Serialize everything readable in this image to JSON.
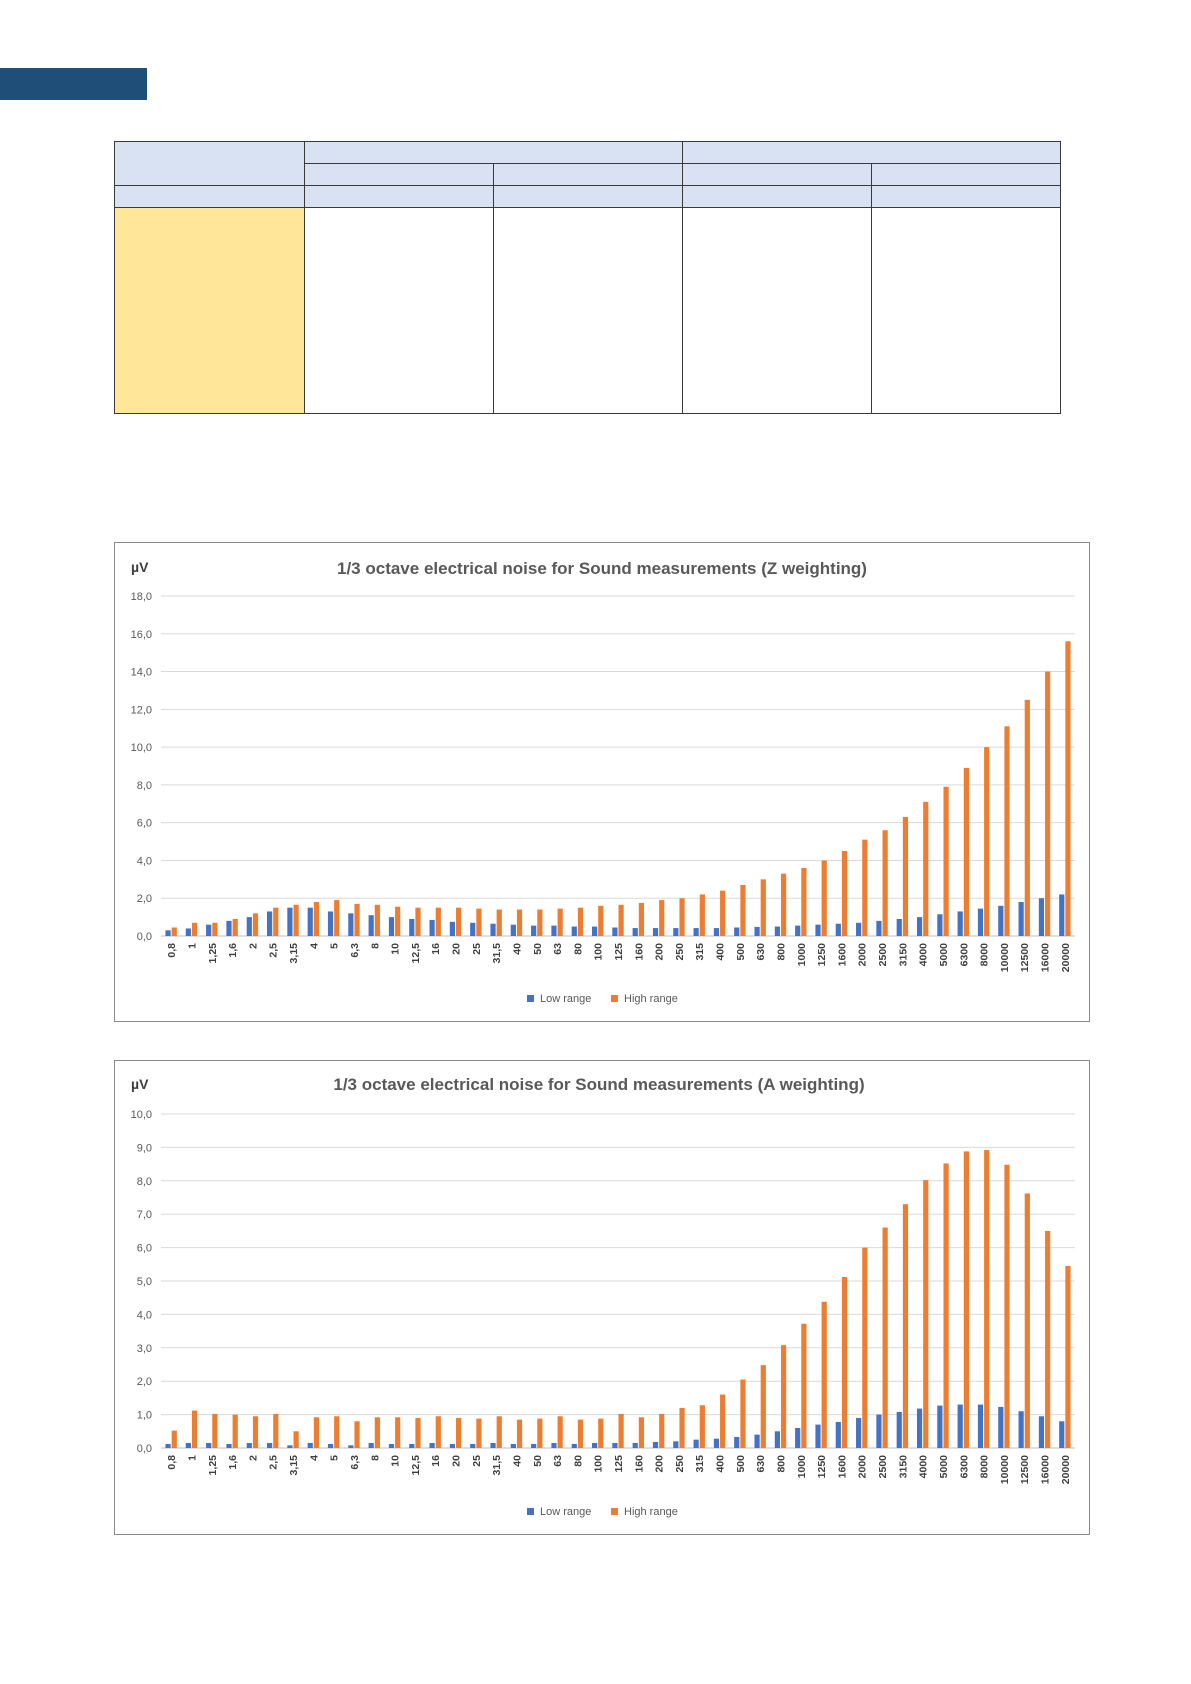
{
  "colors": {
    "low": "#4472c4",
    "high": "#ed7d31",
    "header": "#1f4e79",
    "table_header": "#d9e2f3",
    "table_label": "#ffe699"
  },
  "chart_data": [
    {
      "type": "bar",
      "title": "1/3 octave electrical noise for Sound measurements (Z weighting)",
      "ylabel": "µV",
      "ylim": [
        0,
        18
      ],
      "yticks": [
        "0,0",
        "2,0",
        "4,0",
        "6,0",
        "8,0",
        "10,0",
        "12,0",
        "14,0",
        "16,0",
        "18,0"
      ],
      "grid": true,
      "legend": "bottom",
      "categories": [
        "0,8",
        "1",
        "1,25",
        "1,6",
        "2",
        "2,5",
        "3,15",
        "4",
        "5",
        "6,3",
        "8",
        "10",
        "12,5",
        "16",
        "20",
        "25",
        "31,5",
        "40",
        "50",
        "63",
        "80",
        "100",
        "125",
        "160",
        "200",
        "250",
        "315",
        "400",
        "500",
        "630",
        "800",
        "1000",
        "1250",
        "1600",
        "2000",
        "2500",
        "3150",
        "4000",
        "5000",
        "6300",
        "8000",
        "10000",
        "12500",
        "16000",
        "20000"
      ],
      "series": [
        {
          "name": "Low range",
          "values": [
            0.3,
            0.4,
            0.6,
            0.8,
            1.0,
            1.3,
            1.5,
            1.5,
            1.3,
            1.2,
            1.1,
            1.0,
            0.9,
            0.85,
            0.75,
            0.7,
            0.65,
            0.6,
            0.55,
            0.55,
            0.5,
            0.5,
            0.45,
            0.42,
            0.42,
            0.42,
            0.42,
            0.42,
            0.45,
            0.48,
            0.5,
            0.55,
            0.6,
            0.65,
            0.7,
            0.8,
            0.9,
            1.0,
            1.15,
            1.3,
            1.45,
            1.6,
            1.8,
            2.0,
            2.2
          ]
        },
        {
          "name": "High range",
          "values": [
            0.45,
            0.7,
            0.7,
            0.9,
            1.2,
            1.5,
            1.65,
            1.8,
            1.9,
            1.7,
            1.65,
            1.55,
            1.5,
            1.5,
            1.5,
            1.45,
            1.4,
            1.4,
            1.4,
            1.45,
            1.5,
            1.6,
            1.65,
            1.75,
            1.9,
            2.0,
            2.2,
            2.4,
            2.7,
            3.0,
            3.3,
            3.6,
            4.0,
            4.5,
            5.1,
            5.6,
            6.3,
            7.1,
            7.9,
            8.9,
            10.0,
            11.1,
            12.5,
            14.0,
            15.6
          ]
        }
      ]
    },
    {
      "type": "bar",
      "title": "1/3 octave electrical noise for Sound measurements (A weighting)",
      "ylabel": "µV",
      "ylim": [
        0,
        10
      ],
      "yticks": [
        "0,0",
        "1,0",
        "2,0",
        "3,0",
        "4,0",
        "5,0",
        "6,0",
        "7,0",
        "8,0",
        "9,0",
        "10,0"
      ],
      "grid": true,
      "legend": "bottom",
      "categories": [
        "0,8",
        "1",
        "1,25",
        "1,6",
        "2",
        "2,5",
        "3,15",
        "4",
        "5",
        "6,3",
        "8",
        "10",
        "12,5",
        "16",
        "20",
        "25",
        "31,5",
        "40",
        "50",
        "63",
        "80",
        "100",
        "125",
        "160",
        "200",
        "250",
        "315",
        "400",
        "500",
        "630",
        "800",
        "1000",
        "1250",
        "1600",
        "2000",
        "2500",
        "3150",
        "4000",
        "5000",
        "6300",
        "8000",
        "10000",
        "12500",
        "16000",
        "20000"
      ],
      "series": [
        {
          "name": "Low range",
          "values": [
            0.12,
            0.15,
            0.15,
            0.12,
            0.15,
            0.15,
            0.08,
            0.15,
            0.12,
            0.08,
            0.15,
            0.12,
            0.12,
            0.15,
            0.12,
            0.12,
            0.15,
            0.12,
            0.12,
            0.15,
            0.12,
            0.15,
            0.15,
            0.15,
            0.18,
            0.2,
            0.25,
            0.28,
            0.33,
            0.4,
            0.5,
            0.6,
            0.7,
            0.78,
            0.9,
            1.0,
            1.08,
            1.18,
            1.27,
            1.3,
            1.3,
            1.23,
            1.1,
            0.95,
            0.8
          ]
        },
        {
          "name": "High range",
          "values": [
            0.52,
            1.12,
            1.02,
            1.0,
            0.95,
            1.02,
            0.5,
            0.92,
            0.95,
            0.8,
            0.92,
            0.92,
            0.9,
            0.95,
            0.9,
            0.88,
            0.95,
            0.85,
            0.88,
            0.95,
            0.85,
            0.88,
            1.02,
            0.92,
            1.02,
            1.2,
            1.28,
            1.6,
            2.05,
            2.48,
            3.08,
            3.72,
            4.38,
            5.12,
            6.0,
            6.6,
            7.3,
            8.02,
            8.52,
            8.88,
            8.92,
            8.48,
            7.62,
            6.5,
            5.45
          ]
        }
      ]
    }
  ]
}
